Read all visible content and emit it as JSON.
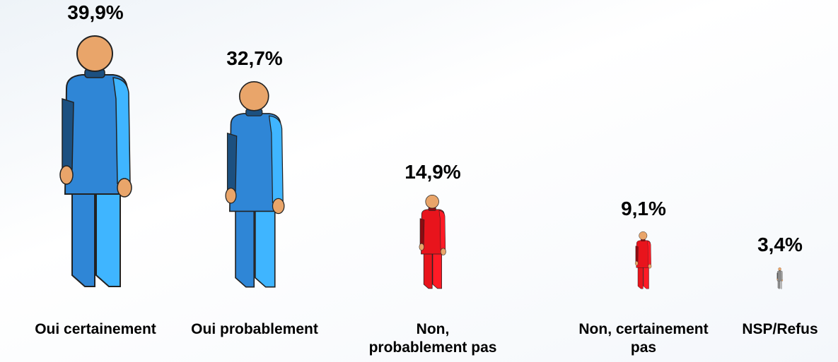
{
  "chart_data": {
    "type": "pictograph",
    "categories": [
      "Oui certainement",
      "Oui probablement",
      "Non, probablement pas",
      "Non, certainement pas",
      "NSP/Refus"
    ],
    "values": [
      39.9,
      32.7,
      14.9,
      9.1,
      3.4
    ],
    "value_labels": [
      "39,9%",
      "32,7%",
      "14,9%",
      "9,1%",
      "3,4%"
    ],
    "colors": [
      "#2f86d6",
      "#2f86d6",
      "#e8141c",
      "#e8141c",
      "#8c8c8c"
    ]
  }
}
